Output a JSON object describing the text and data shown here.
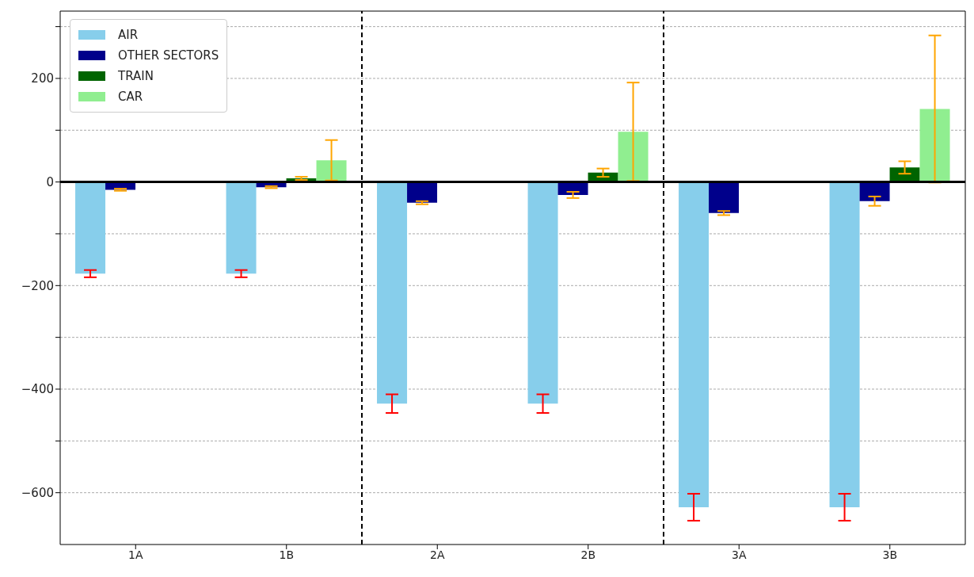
{
  "chart_data": {
    "type": "bar",
    "categories": [
      "1A",
      "1B",
      "2A",
      "2B",
      "3A",
      "3B"
    ],
    "series": [
      {
        "name": "AIR",
        "color": "#87ceeb",
        "values": [
          -177,
          -177,
          -428,
          -428,
          -628,
          -628
        ],
        "errors": [
          7,
          7,
          18,
          18,
          26,
          26
        ]
      },
      {
        "name": "OTHER SECTORS",
        "color": "#00008b",
        "values": [
          -15,
          -10,
          -40,
          -25,
          -60,
          -37
        ],
        "errors": [
          2,
          2,
          3,
          6,
          4,
          9
        ]
      },
      {
        "name": "TRAIN",
        "color": "#006400",
        "values": [
          null,
          7,
          null,
          18,
          null,
          28
        ],
        "errors": [
          null,
          3,
          null,
          8,
          null,
          12
        ]
      },
      {
        "name": "CAR",
        "color": "#90ee90",
        "values": [
          null,
          42,
          null,
          97,
          null,
          141
        ],
        "errors": [
          null,
          39,
          null,
          95,
          null,
          142
        ]
      }
    ],
    "ylim": [
      -700,
      330
    ],
    "yticks": [
      {
        "value": -600,
        "label": "−600"
      },
      {
        "value": -500,
        "label": null
      },
      {
        "value": -400,
        "label": "−400"
      },
      {
        "value": -300,
        "label": null
      },
      {
        "value": -200,
        "label": "−200"
      },
      {
        "value": -100,
        "label": null
      },
      0,
      {
        "value": 100,
        "label": null
      },
      200,
      {
        "value": 300,
        "label": null
      }
    ],
    "grid": "y",
    "legend": "top left",
    "ref_lines": [
      {
        "axis": "y",
        "value": 0,
        "color": "#000000",
        "line_style": "solid"
      }
    ]
  }
}
